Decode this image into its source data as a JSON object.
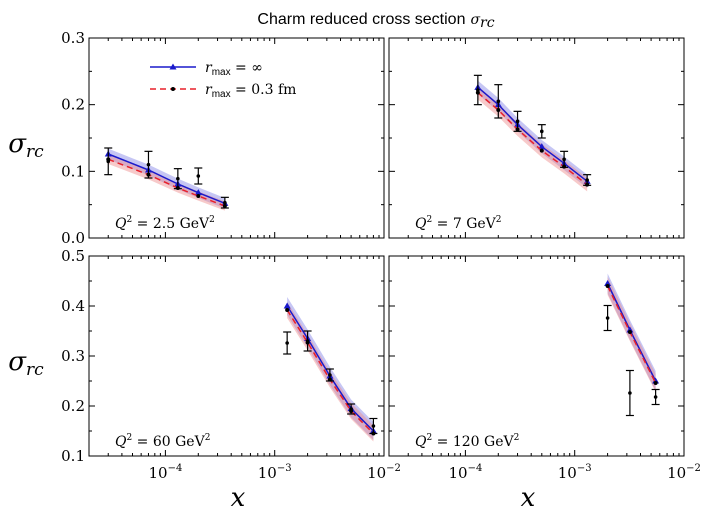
{
  "title": "Charm reduced cross section",
  "title_symbol": "σ",
  "title_symbol_sub": "rc",
  "xlabel": "x",
  "ylabel": "σ",
  "ylabel_sub": "rc",
  "legend": [
    {
      "label": "r",
      "sub": "max",
      "tail": " = ∞",
      "color": "#1a1acc",
      "dash": false
    },
    {
      "label": "r",
      "sub": "max",
      "tail": " = 0.3 fm",
      "color": "#e8202a",
      "dash": true
    }
  ],
  "x_tick_labels": [
    {
      "base": "10",
      "exp": "−4"
    },
    {
      "base": "10",
      "exp": "−3"
    },
    {
      "base": "10",
      "exp": "−2"
    }
  ],
  "colors": {
    "line_inf": "#1a1acc",
    "line_03": "#e8202a",
    "band_inf": "#8080e6",
    "band_03": "#ee8a8a",
    "data": "#000000"
  },
  "chart_data": [
    {
      "type": "line",
      "panel": "top-left",
      "xscale": "log",
      "xlim": [
        2e-05,
        0.01
      ],
      "ylim": [
        0.0,
        0.3
      ],
      "y_ticks": [
        0.0,
        0.1,
        0.2,
        0.3
      ],
      "y_tick_labels": [
        "0.0",
        "0.1",
        "0.2",
        "0.3"
      ],
      "annotation": {
        "pre": "Q",
        "exp": "2",
        "mid": " = 2.5 GeV",
        "exp2": "2"
      },
      "series": [
        {
          "name": "r_max = ∞",
          "x": [
            3e-05,
            7e-05,
            0.00013,
            0.0002,
            0.00035
          ],
          "y": [
            0.126,
            0.102,
            0.081,
            0.068,
            0.052
          ],
          "band": 0.008
        },
        {
          "name": "r_max = 0.3 fm",
          "x": [
            3e-05,
            7e-05,
            0.00013,
            0.0002,
            0.00035
          ],
          "y": [
            0.118,
            0.095,
            0.075,
            0.063,
            0.048
          ],
          "band": 0.007
        }
      ],
      "data_points": {
        "x": [
          3e-05,
          7e-05,
          0.00013,
          0.0002,
          0.00035
        ],
        "y": [
          0.115,
          0.11,
          0.089,
          0.093,
          0.053
        ],
        "err": [
          0.02,
          0.02,
          0.015,
          0.012,
          0.008
        ]
      }
    },
    {
      "type": "line",
      "panel": "top-right",
      "xscale": "log",
      "xlim": [
        2e-05,
        0.01
      ],
      "ylim": [
        0.0,
        0.3
      ],
      "y_ticks": [
        0.0,
        0.1,
        0.2,
        0.3
      ],
      "y_tick_labels": [
        "0.0",
        "0.1",
        "0.2",
        "0.3"
      ],
      "annotation": {
        "pre": "Q",
        "exp": "2",
        "mid": " = 7 GeV",
        "exp2": "2"
      },
      "series": [
        {
          "name": "r_max = ∞",
          "x": [
            0.00013,
            0.0002,
            0.0003,
            0.0005,
            0.0008,
            0.0013
          ],
          "y": [
            0.226,
            0.2,
            0.17,
            0.137,
            0.112,
            0.085
          ],
          "band": 0.01
        },
        {
          "name": "r_max = 0.3 fm",
          "x": [
            0.00013,
            0.0002,
            0.0003,
            0.0005,
            0.0008,
            0.0013
          ],
          "y": [
            0.218,
            0.192,
            0.163,
            0.131,
            0.107,
            0.08
          ],
          "band": 0.01
        }
      ],
      "data_points": {
        "x": [
          0.00013,
          0.0002,
          0.0003,
          0.0005,
          0.0008,
          0.0013
        ],
        "y": [
          0.222,
          0.205,
          0.175,
          0.16,
          0.118,
          0.087
        ],
        "err": [
          0.022,
          0.025,
          0.015,
          0.01,
          0.012,
          0.008
        ]
      }
    },
    {
      "type": "line",
      "panel": "bottom-left",
      "xscale": "log",
      "xlim": [
        2e-05,
        0.01
      ],
      "ylim": [
        0.1,
        0.5
      ],
      "y_ticks": [
        0.1,
        0.2,
        0.3,
        0.4,
        0.5
      ],
      "y_tick_labels": [
        "0.1",
        "0.2",
        "0.3",
        "0.4",
        "0.5"
      ],
      "annotation": {
        "pre": "Q",
        "exp": "2",
        "mid": " = 60 GeV",
        "exp2": "2"
      },
      "series": [
        {
          "name": "r_max = ∞",
          "x": [
            0.0013,
            0.002,
            0.0032,
            0.005,
            0.008
          ],
          "y": [
            0.4,
            0.335,
            0.26,
            0.195,
            0.15
          ],
          "band": 0.018
        },
        {
          "name": "r_max = 0.3 fm",
          "x": [
            0.0013,
            0.002,
            0.0032,
            0.005,
            0.008
          ],
          "y": [
            0.392,
            0.327,
            0.253,
            0.19,
            0.145
          ],
          "band": 0.016
        }
      ],
      "data_points": {
        "x": [
          0.0013,
          0.002,
          0.0032,
          0.005,
          0.008
        ],
        "y": [
          0.326,
          0.33,
          0.262,
          0.194,
          0.16
        ],
        "err": [
          0.022,
          0.02,
          0.012,
          0.01,
          0.015
        ]
      }
    },
    {
      "type": "line",
      "panel": "bottom-right",
      "xscale": "log",
      "xlim": [
        2e-05,
        0.01
      ],
      "ylim": [
        0.1,
        0.5
      ],
      "y_ticks": [
        0.1,
        0.2,
        0.3,
        0.4,
        0.5
      ],
      "y_tick_labels": [
        "0.1",
        "0.2",
        "0.3",
        "0.4",
        "0.5"
      ],
      "annotation": {
        "pre": "Q",
        "exp": "2",
        "mid": " = 120 GeV",
        "exp2": "2"
      },
      "series": [
        {
          "name": "r_max = ∞",
          "x": [
            0.002,
            0.0032,
            0.0055
          ],
          "y": [
            0.445,
            0.352,
            0.25
          ],
          "band": 0.02
        },
        {
          "name": "r_max = 0.3 fm",
          "x": [
            0.002,
            0.0032,
            0.0055
          ],
          "y": [
            0.44,
            0.348,
            0.246
          ],
          "band": 0.018
        }
      ],
      "data_points": {
        "x": [
          0.002,
          0.0032,
          0.0055
        ],
        "y": [
          0.376,
          0.226,
          0.218
        ],
        "err": [
          0.025,
          0.045,
          0.015
        ]
      }
    }
  ]
}
